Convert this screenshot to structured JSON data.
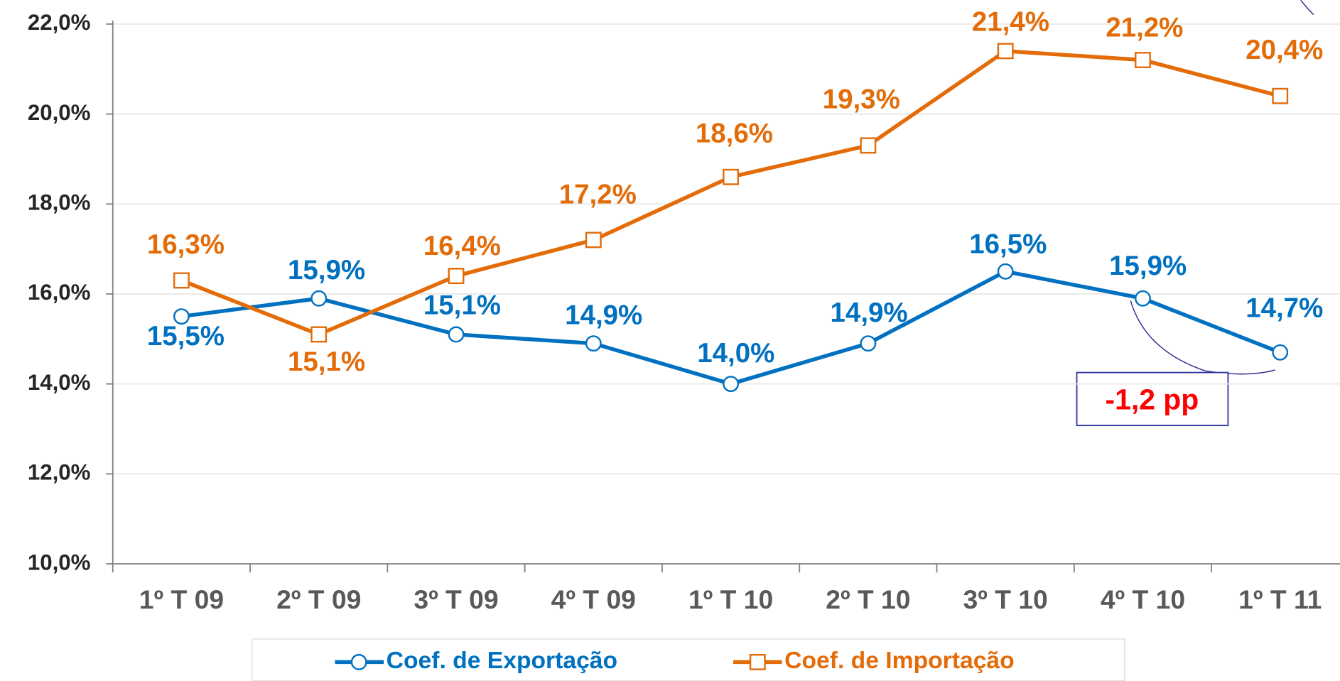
{
  "chart_data": {
    "type": "line",
    "categories": [
      "1º T 09",
      "2º T 09",
      "3º T 09",
      "4º T 09",
      "1º T 10",
      "2º T 10",
      "3º T 10",
      "4º T 10",
      "1º T 11"
    ],
    "series": [
      {
        "name": "Coef. de Exportação",
        "color": "#0070c0",
        "marker": "circle",
        "values": [
          15.5,
          15.9,
          15.1,
          14.9,
          14.0,
          14.9,
          16.5,
          15.9,
          14.7
        ],
        "value_labels": [
          "15,5%",
          "15,9%",
          "15,1%",
          "14,9%",
          "14,0%",
          "14,9%",
          "16,5%",
          "15,9%",
          "14,7%"
        ]
      },
      {
        "name": "Coef. de Importação",
        "color": "#e36c09",
        "marker": "square",
        "values": [
          16.3,
          15.1,
          16.4,
          17.2,
          18.6,
          19.3,
          21.4,
          21.2,
          20.4
        ],
        "value_labels": [
          "16,3%",
          "15,1%",
          "16,4%",
          "17,2%",
          "18,6%",
          "19,3%",
          "21,4%",
          "21,2%",
          "20,4%"
        ]
      }
    ],
    "ylim": [
      10,
      22
    ],
    "yticks": [
      {
        "value": 10,
        "label": "10,0%"
      },
      {
        "value": 12,
        "label": "12,0%"
      },
      {
        "value": 14,
        "label": "14,0%"
      },
      {
        "value": 16,
        "label": "16,0%"
      },
      {
        "value": 18,
        "label": "18,0%"
      },
      {
        "value": 20,
        "label": "20,0%"
      },
      {
        "value": 22,
        "label": "22,0%"
      }
    ],
    "grid": true,
    "legend": "bottom",
    "annotations": [
      "-1,2 pp"
    ]
  }
}
